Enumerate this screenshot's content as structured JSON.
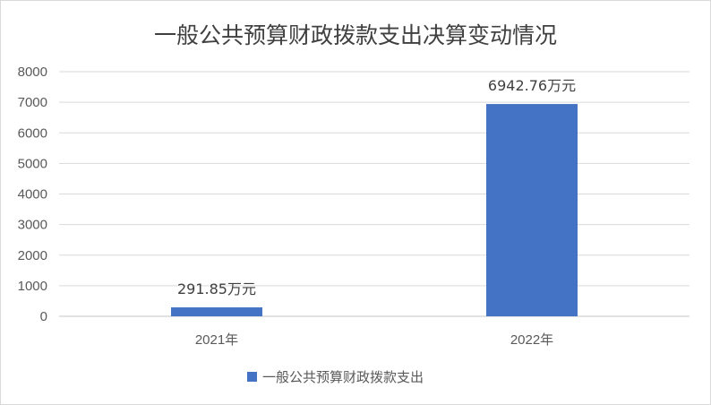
{
  "chart_data": {
    "type": "bar",
    "title": "一般公共预算财政拨款支出决算变动情况",
    "categories": [
      "2021年",
      "2022年"
    ],
    "series": [
      {
        "name": "一般公共预算财政拨款支出",
        "values": [
          291.85,
          6942.76
        ],
        "data_labels": [
          "291.85万元",
          "6942.76万元"
        ],
        "color": "#4472c4"
      }
    ],
    "ylim": [
      0,
      8000
    ],
    "yticks": [
      "0",
      "1000",
      "2000",
      "3000",
      "4000",
      "5000",
      "6000",
      "7000",
      "8000"
    ],
    "grid": true,
    "legend": "bottom",
    "xlabel": "",
    "ylabel": ""
  }
}
